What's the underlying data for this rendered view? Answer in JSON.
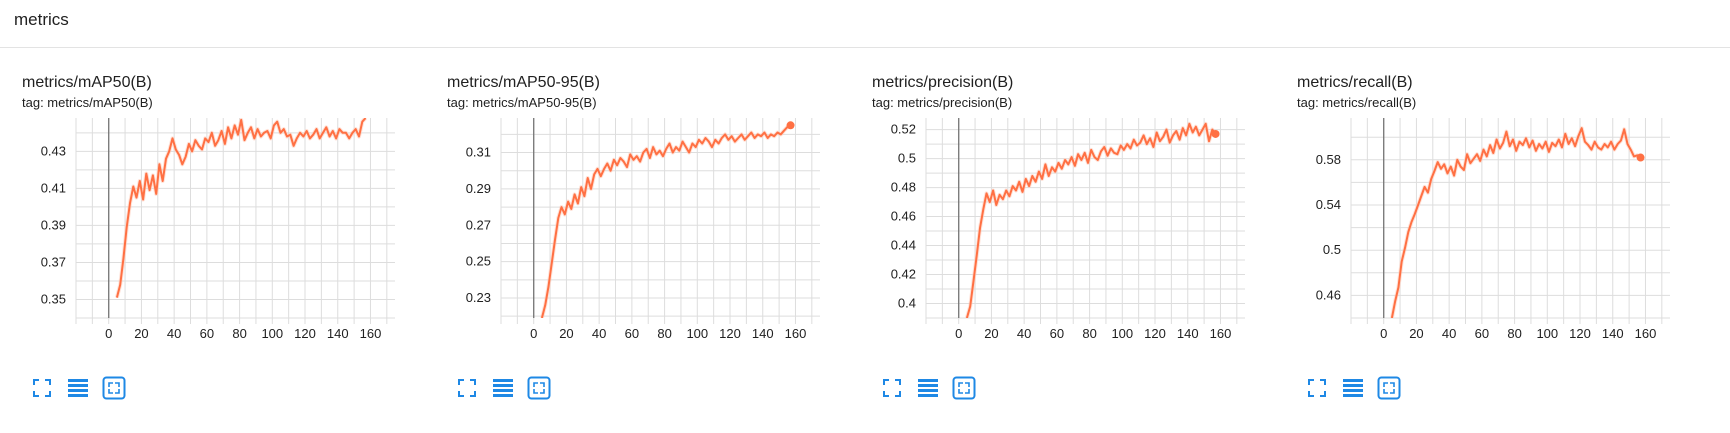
{
  "section": {
    "title": "metrics"
  },
  "colors": {
    "line": "#ff7043",
    "raw": "#ffcab8",
    "grid": "#dddddd",
    "zero": "#757575",
    "icon": "#1e88e5"
  },
  "cards": [
    {
      "title": "metrics/mAP50(B)",
      "tag": "tag: metrics/mAP50(B)",
      "chart_data": {
        "type": "line",
        "xlim": [
          -20,
          175
        ],
        "ylim": [
          0.34,
          0.448
        ],
        "xticks": [
          0,
          20,
          40,
          60,
          80,
          100,
          120,
          140,
          160
        ],
        "yticks": [
          0.35,
          0.37,
          0.39,
          0.41,
          0.43
        ],
        "ytick_labels": [
          "0.35",
          "0.37",
          "0.39",
          "0.41",
          "0.43"
        ],
        "series": [
          {
            "x": [
              5,
              7,
              9,
              11,
              13,
              15,
              17,
              19,
              21,
              23,
              25,
              27,
              29,
              31,
              33,
              35,
              37,
              39,
              41,
              43,
              45,
              47,
              49,
              51,
              53,
              55,
              57,
              59,
              61,
              63,
              65,
              67,
              69,
              71,
              73,
              75,
              77,
              79,
              81,
              83,
              85,
              87,
              89,
              91,
              93,
              95,
              97,
              99,
              101,
              103,
              105,
              107,
              109,
              111,
              113,
              115,
              117,
              119,
              121,
              123,
              125,
              127,
              129,
              131,
              133,
              135,
              137,
              139,
              141,
              143,
              145,
              147,
              149,
              151,
              153,
              155,
              157
            ],
            "y": [
              0.351,
              0.358,
              0.372,
              0.389,
              0.402,
              0.411,
              0.405,
              0.414,
              0.404,
              0.418,
              0.409,
              0.417,
              0.407,
              0.423,
              0.414,
              0.426,
              0.43,
              0.437,
              0.431,
              0.428,
              0.423,
              0.427,
              0.434,
              0.43,
              0.436,
              0.433,
              0.431,
              0.437,
              0.435,
              0.44,
              0.433,
              0.436,
              0.441,
              0.434,
              0.443,
              0.437,
              0.444,
              0.439,
              0.447,
              0.436,
              0.44,
              0.443,
              0.437,
              0.442,
              0.438,
              0.44,
              0.441,
              0.437,
              0.444,
              0.446,
              0.44,
              0.442,
              0.438,
              0.439,
              0.433,
              0.437,
              0.44,
              0.438,
              0.441,
              0.437,
              0.439,
              0.442,
              0.437,
              0.44,
              0.443,
              0.438,
              0.441,
              0.437,
              0.442,
              0.44,
              0.44,
              0.437,
              0.44,
              0.442,
              0.438,
              0.446,
              0.448
            ]
          }
        ],
        "endpoint": false
      }
    },
    {
      "title": "metrics/mAP50-95(B)",
      "tag": "tag: metrics/mAP50-95(B)",
      "chart_data": {
        "type": "line",
        "xlim": [
          -20,
          175
        ],
        "ylim": [
          0.219,
          0.329
        ],
        "xticks": [
          0,
          20,
          40,
          60,
          80,
          100,
          120,
          140,
          160
        ],
        "yticks": [
          0.23,
          0.25,
          0.27,
          0.29,
          0.31
        ],
        "ytick_labels": [
          "0.23",
          "0.25",
          "0.27",
          "0.29",
          "0.31"
        ],
        "series": [
          {
            "x": [
              5,
              7,
              9,
              11,
              13,
              15,
              17,
              19,
              21,
              23,
              25,
              27,
              29,
              31,
              33,
              35,
              37,
              39,
              41,
              43,
              45,
              47,
              49,
              51,
              53,
              55,
              57,
              59,
              61,
              63,
              65,
              67,
              69,
              71,
              73,
              75,
              77,
              79,
              81,
              83,
              85,
              87,
              89,
              91,
              93,
              95,
              97,
              99,
              101,
              103,
              105,
              107,
              109,
              111,
              113,
              115,
              117,
              119,
              121,
              123,
              125,
              127,
              129,
              131,
              133,
              135,
              137,
              139,
              141,
              143,
              145,
              147,
              149,
              151,
              153,
              155,
              157
            ],
            "y": [
              0.219,
              0.226,
              0.236,
              0.249,
              0.262,
              0.274,
              0.28,
              0.276,
              0.283,
              0.279,
              0.287,
              0.282,
              0.291,
              0.286,
              0.296,
              0.29,
              0.298,
              0.301,
              0.297,
              0.301,
              0.304,
              0.3,
              0.306,
              0.303,
              0.307,
              0.305,
              0.302,
              0.309,
              0.306,
              0.308,
              0.305,
              0.31,
              0.312,
              0.307,
              0.313,
              0.309,
              0.311,
              0.308,
              0.312,
              0.315,
              0.31,
              0.313,
              0.311,
              0.316,
              0.313,
              0.31,
              0.315,
              0.313,
              0.317,
              0.315,
              0.318,
              0.316,
              0.313,
              0.317,
              0.315,
              0.318,
              0.32,
              0.317,
              0.319,
              0.316,
              0.318,
              0.32,
              0.317,
              0.319,
              0.321,
              0.318,
              0.32,
              0.319,
              0.321,
              0.318,
              0.32,
              0.319,
              0.321,
              0.32,
              0.322,
              0.324,
              0.325
            ]
          }
        ],
        "endpoint": true
      }
    },
    {
      "title": "metrics/precision(B)",
      "tag": "tag: metrics/precision(B)",
      "chart_data": {
        "type": "line",
        "xlim": [
          -20,
          175
        ],
        "ylim": [
          0.39,
          0.528
        ],
        "xticks": [
          0,
          20,
          40,
          60,
          80,
          100,
          120,
          140,
          160
        ],
        "yticks": [
          0.4,
          0.42,
          0.44,
          0.46,
          0.48,
          0.5,
          0.52
        ],
        "ytick_labels": [
          "0.4",
          "0.42",
          "0.44",
          "0.46",
          "0.48",
          "0.5",
          "0.52"
        ],
        "series": [
          {
            "x": [
              5,
              7,
              9,
              11,
              13,
              15,
              17,
              19,
              21,
              23,
              25,
              27,
              29,
              31,
              33,
              35,
              37,
              39,
              41,
              43,
              45,
              47,
              49,
              51,
              53,
              55,
              57,
              59,
              61,
              63,
              65,
              67,
              69,
              71,
              73,
              75,
              77,
              79,
              81,
              83,
              85,
              87,
              89,
              91,
              93,
              95,
              97,
              99,
              101,
              103,
              105,
              107,
              109,
              111,
              113,
              115,
              117,
              119,
              121,
              123,
              125,
              127,
              129,
              131,
              133,
              135,
              137,
              139,
              141,
              143,
              145,
              147,
              149,
              151,
              153,
              155,
              157
            ],
            "y": [
              0.39,
              0.398,
              0.415,
              0.433,
              0.452,
              0.465,
              0.476,
              0.47,
              0.478,
              0.468,
              0.475,
              0.472,
              0.478,
              0.474,
              0.481,
              0.478,
              0.484,
              0.477,
              0.486,
              0.481,
              0.488,
              0.484,
              0.491,
              0.486,
              0.496,
              0.488,
              0.494,
              0.491,
              0.497,
              0.493,
              0.499,
              0.496,
              0.501,
              0.495,
              0.503,
              0.499,
              0.504,
              0.497,
              0.506,
              0.501,
              0.499,
              0.505,
              0.508,
              0.502,
              0.507,
              0.504,
              0.503,
              0.509,
              0.506,
              0.51,
              0.507,
              0.513,
              0.509,
              0.511,
              0.516,
              0.51,
              0.514,
              0.508,
              0.518,
              0.512,
              0.515,
              0.52,
              0.511,
              0.516,
              0.519,
              0.513,
              0.521,
              0.516,
              0.524,
              0.518,
              0.522,
              0.516,
              0.52,
              0.524,
              0.512,
              0.52,
              0.517
            ]
          }
        ],
        "endpoint": true
      }
    },
    {
      "title": "metrics/recall(B)",
      "tag": "tag: metrics/recall(B)",
      "chart_data": {
        "type": "line",
        "xlim": [
          -20,
          175
        ],
        "ylim": [
          0.44,
          0.617
        ],
        "xticks": [
          0,
          20,
          40,
          60,
          80,
          100,
          120,
          140,
          160
        ],
        "yticks": [
          0.46,
          0.5,
          0.54,
          0.58
        ],
        "ytick_labels": [
          "0.46",
          "0.5",
          "0.54",
          "0.58"
        ],
        "series": [
          {
            "x": [
              5,
              7,
              9,
              11,
              13,
              15,
              17,
              19,
              21,
              23,
              25,
              27,
              29,
              31,
              33,
              35,
              37,
              39,
              41,
              43,
              45,
              47,
              49,
              51,
              53,
              55,
              57,
              59,
              61,
              63,
              65,
              67,
              69,
              71,
              73,
              75,
              77,
              79,
              81,
              83,
              85,
              87,
              89,
              91,
              93,
              95,
              97,
              99,
              101,
              103,
              105,
              107,
              109,
              111,
              113,
              115,
              117,
              119,
              121,
              123,
              125,
              127,
              129,
              131,
              133,
              135,
              137,
              139,
              141,
              143,
              145,
              147,
              149,
              151,
              153,
              155,
              157
            ],
            "y": [
              0.44,
              0.455,
              0.467,
              0.49,
              0.502,
              0.516,
              0.525,
              0.532,
              0.54,
              0.548,
              0.556,
              0.551,
              0.563,
              0.57,
              0.578,
              0.572,
              0.576,
              0.568,
              0.574,
              0.566,
              0.58,
              0.574,
              0.571,
              0.585,
              0.577,
              0.581,
              0.585,
              0.579,
              0.589,
              0.583,
              0.593,
              0.586,
              0.598,
              0.59,
              0.595,
              0.605,
              0.592,
              0.598,
              0.588,
              0.596,
              0.593,
              0.599,
              0.591,
              0.597,
              0.588,
              0.594,
              0.59,
              0.596,
              0.587,
              0.595,
              0.592,
              0.598,
              0.591,
              0.603,
              0.594,
              0.599,
              0.592,
              0.601,
              0.608,
              0.596,
              0.593,
              0.589,
              0.596,
              0.591,
              0.589,
              0.594,
              0.591,
              0.596,
              0.589,
              0.594,
              0.597,
              0.607,
              0.594,
              0.589,
              0.583,
              0.584,
              0.582
            ]
          }
        ],
        "endpoint": true
      }
    }
  ]
}
